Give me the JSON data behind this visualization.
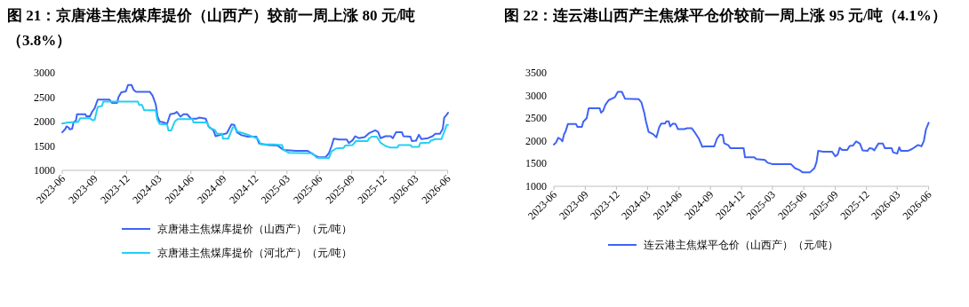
{
  "chart_data": [
    {
      "type": "line",
      "title": "图 21：京唐港主焦煤库提价（山西产）较前一周上涨 80 元/吨（3.8%）",
      "xlim": [
        "2023-06-01",
        "2026-06-02"
      ],
      "xticks": [
        "2023-06",
        "2023-09",
        "2023-12",
        "2024-03",
        "2024-06",
        "2024-09",
        "2024-12",
        "2025-03",
        "2025-06",
        "2025-09",
        "2025-12",
        "2026-03",
        "2026-06"
      ],
      "ylim": [
        1000,
        3000
      ],
      "yticks": [
        1000,
        1500,
        2000,
        2500,
        3000
      ],
      "legend": "bottom",
      "grid": false,
      "marker": "none",
      "line_style": "solid",
      "series": [
        {
          "name": "京唐港主焦煤库提价（山西产）（元/吨）",
          "color": "#3f63f5",
          "x": [
            "2023-06-01",
            "2023-06-10",
            "2023-06-13",
            "2023-06-19",
            "2023-06-22",
            "2023-06-29",
            "2023-07-03",
            "2023-07-10",
            "2023-07-13",
            "2023-08-06",
            "2023-08-08",
            "2023-08-19",
            "2023-08-25",
            "2023-09-01",
            "2023-09-10",
            "2023-10-13",
            "2023-10-21",
            "2023-11-04",
            "2023-11-08",
            "2023-11-16",
            "2023-11-29",
            "2023-12-05",
            "2023-12-15",
            "2023-12-21",
            "2023-12-28",
            "2024-02-05",
            "2024-02-13",
            "2024-02-22",
            "2024-02-27",
            "2024-03-04",
            "2024-03-17",
            "2024-03-25",
            "2024-04-03",
            "2024-04-16",
            "2024-04-22",
            "2024-05-02",
            "2024-05-11",
            "2024-05-21",
            "2024-06-01",
            "2024-06-18",
            "2024-06-24",
            "2024-07-13",
            "2024-07-21",
            "2024-08-04",
            "2024-08-10",
            "2024-08-25",
            "2024-09-11",
            "2024-09-24",
            "2024-10-02",
            "2024-10-10",
            "2024-10-23",
            "2024-11-09",
            "2024-12-04",
            "2024-12-12",
            "2025-01-07",
            "2025-02-02",
            "2025-02-19",
            "2025-03-27",
            "2025-04-29",
            "2025-05-16",
            "2025-05-29",
            "2025-06-19",
            "2025-06-28",
            "2025-07-06",
            "2025-07-12",
            "2025-07-27",
            "2025-08-18",
            "2025-08-24",
            "2025-09-04",
            "2025-09-11",
            "2025-09-21",
            "2025-10-08",
            "2025-10-20",
            "2025-11-07",
            "2025-11-15",
            "2025-11-22",
            "2025-12-06",
            "2025-12-21",
            "2025-12-27",
            "2026-01-05",
            "2026-01-22",
            "2026-01-26",
            "2026-02-15",
            "2026-02-19",
            "2026-03-03",
            "2026-03-11",
            "2026-03-18",
            "2026-04-06",
            "2026-04-19",
            "2026-04-27",
            "2026-05-10",
            "2026-05-18",
            "2026-05-22",
            "2026-05-28",
            "2026-06-02"
          ],
          "values": [
            1780,
            1850,
            1900,
            1880,
            1840,
            1850,
            1980,
            2020,
            2150,
            2150,
            2110,
            2110,
            2200,
            2270,
            2450,
            2450,
            2380,
            2380,
            2500,
            2600,
            2620,
            2750,
            2750,
            2650,
            2610,
            2610,
            2530,
            2350,
            2100,
            2000,
            1980,
            1950,
            2150,
            2170,
            2200,
            2100,
            2150,
            2150,
            2060,
            2060,
            2080,
            2060,
            1900,
            1820,
            1700,
            1730,
            1760,
            1940,
            1930,
            1780,
            1720,
            1690,
            1690,
            1550,
            1520,
            1510,
            1420,
            1400,
            1400,
            1320,
            1270,
            1270,
            1350,
            1500,
            1650,
            1630,
            1630,
            1560,
            1620,
            1700,
            1660,
            1680,
            1760,
            1820,
            1790,
            1660,
            1700,
            1700,
            1660,
            1780,
            1780,
            1700,
            1690,
            1600,
            1610,
            1730,
            1640,
            1660,
            1700,
            1750,
            1750,
            1850,
            2080,
            2130,
            2180
          ]
        },
        {
          "name": "京唐港主焦煤库提价（河北产）（元/吨）",
          "color": "#22d0f4",
          "x": [
            "2023-06-01",
            "2023-06-18",
            "2023-07-16",
            "2023-07-22",
            "2023-08-19",
            "2023-08-25",
            "2023-09-01",
            "2023-09-10",
            "2023-09-22",
            "2023-09-26",
            "2024-01-02",
            "2024-01-06",
            "2024-01-14",
            "2024-01-20",
            "2024-02-22",
            "2024-02-26",
            "2024-03-04",
            "2024-03-25",
            "2024-03-29",
            "2024-04-06",
            "2024-04-16",
            "2024-04-24",
            "2024-06-06",
            "2024-06-08",
            "2024-07-17",
            "2024-07-24",
            "2024-08-08",
            "2024-08-14",
            "2024-08-29",
            "2024-08-31",
            "2024-09-15",
            "2024-09-28",
            "2024-10-06",
            "2024-10-10",
            "2024-11-05",
            "2024-12-08",
            "2024-12-17",
            "2025-01-20",
            "2025-02-15",
            "2025-02-19",
            "2025-03-06",
            "2025-05-12",
            "2025-05-25",
            "2025-06-28",
            "2025-07-06",
            "2025-07-19",
            "2025-08-09",
            "2025-08-14",
            "2025-09-04",
            "2025-09-13",
            "2025-10-16",
            "2025-10-20",
            "2025-10-28",
            "2025-11-11",
            "2025-11-23",
            "2025-12-06",
            "2025-12-18",
            "2026-01-09",
            "2026-01-13",
            "2026-02-15",
            "2026-02-19",
            "2026-03-11",
            "2026-03-15",
            "2026-04-10",
            "2026-04-14",
            "2026-04-27",
            "2026-05-14",
            "2026-05-20",
            "2026-05-24",
            "2026-05-29",
            "2026-06-02"
          ],
          "values": [
            1960,
            1980,
            1990,
            2070,
            2070,
            2030,
            2030,
            2300,
            2320,
            2410,
            2410,
            2340,
            2340,
            2230,
            2230,
            2050,
            1950,
            1940,
            1820,
            1820,
            2000,
            2050,
            2050,
            1980,
            1980,
            1870,
            1830,
            1750,
            1750,
            1650,
            1650,
            1880,
            1880,
            1800,
            1740,
            1650,
            1530,
            1530,
            1520,
            1420,
            1360,
            1350,
            1260,
            1250,
            1390,
            1450,
            1460,
            1510,
            1520,
            1600,
            1600,
            1650,
            1690,
            1690,
            1560,
            1500,
            1470,
            1470,
            1520,
            1520,
            1480,
            1480,
            1560,
            1570,
            1610,
            1640,
            1640,
            1750,
            1820,
            1930,
            1930
          ]
        }
      ]
    },
    {
      "type": "line",
      "title": "图 22：连云港山西产主焦煤平仓价较前一周上涨 95 元/吨（4.1%）",
      "xlim": [
        "2023-06-01",
        "2026-06-02"
      ],
      "xticks": [
        "2023-06",
        "2023-09",
        "2023-12",
        "2024-03",
        "2024-06",
        "2024-09",
        "2024-12",
        "2025-03",
        "2025-06",
        "2025-09",
        "2025-12",
        "2026-03",
        "2026-06"
      ],
      "ylim": [
        1000,
        3500
      ],
      "yticks": [
        1000,
        1500,
        2000,
        2500,
        3000,
        3500
      ],
      "legend": "bottom",
      "grid": false,
      "marker": "none",
      "line_style": "solid",
      "series": [
        {
          "name": "连云港主焦煤平仓价（山西产）（元/吨）",
          "color": "#3f63f5",
          "x": [
            "2023-06-01",
            "2023-06-07",
            "2023-06-14",
            "2023-06-22",
            "2023-06-26",
            "2023-07-01",
            "2023-07-05",
            "2023-07-12",
            "2023-08-05",
            "2023-08-09",
            "2023-08-22",
            "2023-08-26",
            "2023-09-05",
            "2023-09-11",
            "2023-10-13",
            "2023-10-17",
            "2023-10-23",
            "2023-10-30",
            "2023-11-09",
            "2023-11-26",
            "2023-12-05",
            "2023-12-17",
            "2023-12-26",
            "2024-02-04",
            "2024-02-12",
            "2024-02-21",
            "2024-02-25",
            "2024-03-04",
            "2024-03-17",
            "2024-03-27",
            "2024-04-04",
            "2024-04-10",
            "2024-04-21",
            "2024-04-25",
            "2024-05-02",
            "2024-05-06",
            "2024-05-14",
            "2024-05-22",
            "2024-05-29",
            "2024-06-16",
            "2024-06-25",
            "2024-07-08",
            "2024-07-16",
            "2024-07-29",
            "2024-08-08",
            "2024-08-16",
            "2024-09-12",
            "2024-09-20",
            "2024-09-29",
            "2024-10-07",
            "2024-10-11",
            "2024-10-24",
            "2024-10-29",
            "2024-12-07",
            "2024-12-11",
            "2025-01-07",
            "2025-01-13",
            "2025-02-07",
            "2025-02-15",
            "2025-02-28",
            "2025-04-24",
            "2025-05-06",
            "2025-05-19",
            "2025-05-28",
            "2025-06-19",
            "2025-07-02",
            "2025-07-08",
            "2025-07-13",
            "2025-07-28",
            "2025-08-23",
            "2025-09-01",
            "2025-09-08",
            "2025-09-14",
            "2025-09-21",
            "2025-10-06",
            "2025-10-13",
            "2025-10-23",
            "2025-11-01",
            "2025-11-12",
            "2025-11-20",
            "2025-12-04",
            "2025-12-10",
            "2025-12-18",
            "2025-12-24",
            "2026-01-05",
            "2026-01-18",
            "2026-01-24",
            "2026-02-13",
            "2026-02-17",
            "2026-03-01",
            "2026-03-07",
            "2026-03-12",
            "2026-04-01",
            "2026-04-13",
            "2026-05-01",
            "2026-05-11",
            "2026-05-18",
            "2026-05-24",
            "2026-06-01"
          ],
          "values": [
            1920,
            1960,
            2070,
            2030,
            1990,
            2150,
            2200,
            2370,
            2370,
            2310,
            2310,
            2420,
            2500,
            2720,
            2720,
            2620,
            2660,
            2800,
            2900,
            2960,
            3080,
            3080,
            2930,
            2920,
            2850,
            2600,
            2440,
            2200,
            2150,
            2080,
            2300,
            2380,
            2380,
            2430,
            2430,
            2320,
            2380,
            2370,
            2260,
            2260,
            2280,
            2280,
            2200,
            2050,
            1870,
            1880,
            1880,
            2050,
            2140,
            2130,
            1950,
            1900,
            1840,
            1840,
            1640,
            1640,
            1600,
            1580,
            1520,
            1490,
            1490,
            1400,
            1360,
            1310,
            1310,
            1400,
            1530,
            1780,
            1760,
            1760,
            1660,
            1700,
            1850,
            1800,
            1800,
            1890,
            1900,
            1990,
            1940,
            1790,
            1780,
            1840,
            1830,
            1790,
            1940,
            1940,
            1840,
            1840,
            1750,
            1720,
            1860,
            1780,
            1780,
            1820,
            1910,
            1880,
            2000,
            2250,
            2400
          ]
        }
      ]
    }
  ]
}
